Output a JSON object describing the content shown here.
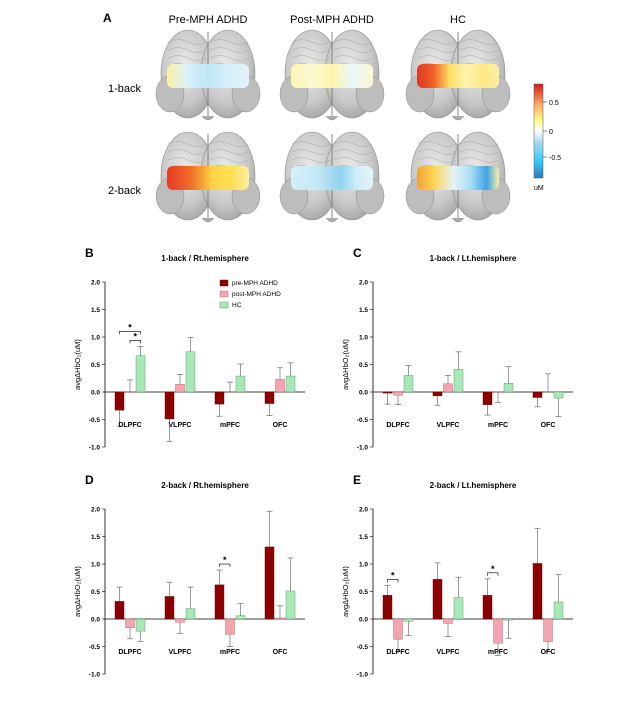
{
  "panel_a": {
    "letter": "A",
    "column_headers": [
      "Pre-MPH ADHD",
      "Post-MPH ADHD",
      "HC"
    ],
    "row_labels": [
      "1-back",
      "2-back"
    ],
    "colorbar": {
      "ticks": [
        "0.5",
        "0",
        "-0.5"
      ],
      "unit": "uM",
      "colors": [
        "#d7191c",
        "#fdae61",
        "#ffff8c",
        "#ffffff",
        "#abd9e9",
        "#2c7bb6"
      ]
    }
  },
  "chart_data": [
    {
      "type": "bar",
      "letter": "B",
      "title": "1-back / Rt.hemisphere",
      "ylabel": "avgΔHbO₂(uM)",
      "ylim": [
        -1.0,
        2.0
      ],
      "yticks": [
        "-1.0",
        "-0.5",
        "0.0",
        "0.5",
        "1.0",
        "1.5",
        "2.0"
      ],
      "categories": [
        "DLPFC",
        "VLPFC",
        "mPFC",
        "OFC"
      ],
      "legend": [
        "pre-MPH ADHD",
        "post-MPH ADHD",
        "HC"
      ],
      "series": [
        {
          "name": "pre-MPH ADHD",
          "values": [
            -0.33,
            -0.49,
            -0.22,
            -0.21
          ],
          "errors": [
            0.29,
            0.41,
            0.22,
            0.22
          ]
        },
        {
          "name": "post-MPH ADHD",
          "values": [
            0.0,
            0.14,
            0.0,
            0.23
          ],
          "errors": [
            0.22,
            0.18,
            0.18,
            0.21
          ]
        },
        {
          "name": "HC",
          "values": [
            0.66,
            0.73,
            0.29,
            0.29
          ],
          "errors": [
            0.17,
            0.26,
            0.22,
            0.24
          ]
        }
      ],
      "significance": [
        {
          "category": 0,
          "from": 0,
          "to": 2,
          "label": "*"
        },
        {
          "category": 0,
          "from": 1,
          "to": 2,
          "label": "*"
        }
      ]
    },
    {
      "type": "bar",
      "letter": "C",
      "title": "1-back / Lt.hemisphere",
      "ylabel": "avgΔHbO₂(uM)",
      "ylim": [
        -1.0,
        2.0
      ],
      "yticks": [
        "-1.0",
        "-0.5",
        "0.0",
        "0.5",
        "1.0",
        "1.5",
        "2.0"
      ],
      "categories": [
        "DLPFC",
        "VLPFC",
        "mPFC",
        "OFC"
      ],
      "series": [
        {
          "name": "pre-MPH ADHD",
          "values": [
            -0.02,
            -0.07,
            -0.23,
            -0.1
          ],
          "errors": [
            0.2,
            0.17,
            0.19,
            0.17
          ]
        },
        {
          "name": "post-MPH ADHD",
          "values": [
            -0.06,
            0.15,
            -0.01,
            0.01
          ],
          "errors": [
            0.17,
            0.15,
            0.18,
            0.32
          ]
        },
        {
          "name": "HC",
          "values": [
            0.3,
            0.41,
            0.16,
            -0.11
          ],
          "errors": [
            0.18,
            0.32,
            0.3,
            0.34
          ]
        }
      ],
      "significance": []
    },
    {
      "type": "bar",
      "letter": "D",
      "title": "2-back / Rt.hemisphere",
      "ylabel": "avgΔHbO₂(uM)",
      "ylim": [
        -1.0,
        2.0
      ],
      "yticks": [
        "-1.0",
        "-0.5",
        "0.0",
        "0.5",
        "1.0",
        "1.5",
        "2.0"
      ],
      "categories": [
        "DLPFC",
        "VLPFC",
        "mPFC",
        "OFC"
      ],
      "series": [
        {
          "name": "pre-MPH ADHD",
          "values": [
            0.32,
            0.41,
            0.62,
            1.31
          ],
          "errors": [
            0.26,
            0.26,
            0.27,
            0.65
          ]
        },
        {
          "name": "post-MPH ADHD",
          "values": [
            -0.16,
            -0.06,
            -0.28,
            0.02
          ],
          "errors": [
            0.2,
            0.2,
            0.22,
            0.22
          ]
        },
        {
          "name": "HC",
          "values": [
            -0.22,
            0.19,
            0.06,
            0.51
          ],
          "errors": [
            0.19,
            0.39,
            0.22,
            0.6
          ]
        }
      ],
      "significance": [
        {
          "category": 2,
          "from": 0,
          "to": 1,
          "label": "*"
        }
      ]
    },
    {
      "type": "bar",
      "letter": "E",
      "title": "2-back / Lt.hemisphere",
      "ylabel": "avgΔHbO₂(uM)",
      "ylim": [
        -1.0,
        2.0
      ],
      "yticks": [
        "-1.0",
        "-0.5",
        "0.0",
        "0.5",
        "1.0",
        "1.5",
        "2.0"
      ],
      "categories": [
        "DLPFC",
        "VLPFC",
        "mPFC",
        "OFC"
      ],
      "series": [
        {
          "name": "pre-MPH ADHD",
          "values": [
            0.43,
            0.72,
            0.43,
            1.01
          ],
          "errors": [
            0.18,
            0.3,
            0.3,
            0.64
          ]
        },
        {
          "name": "post-MPH ADHD",
          "values": [
            -0.37,
            -0.08,
            -0.44,
            -0.41
          ],
          "errors": [
            0.22,
            0.24,
            0.22,
            0.18
          ]
        },
        {
          "name": "HC",
          "values": [
            -0.04,
            0.39,
            -0.02,
            0.31
          ],
          "errors": [
            0.26,
            0.37,
            0.33,
            0.5
          ]
        }
      ],
      "significance": [
        {
          "category": 0,
          "from": 0,
          "to": 1,
          "label": "*"
        },
        {
          "category": 2,
          "from": 0,
          "to": 1,
          "label": "*"
        }
      ]
    }
  ]
}
